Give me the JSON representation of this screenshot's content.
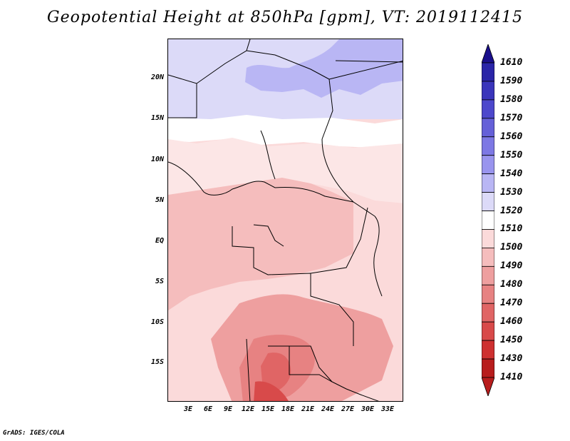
{
  "title": "Geopotential Height at 850hPa [gpm], VT: 2019112415",
  "credit": "GrADS: IGES/COLA",
  "map": {
    "lat_labels": [
      "20N",
      "15N",
      "10N",
      "5N",
      "EQ",
      "5S",
      "10S",
      "15S"
    ],
    "lon_labels": [
      "3E",
      "6E",
      "9E",
      "12E",
      "15E",
      "18E",
      "21E",
      "24E",
      "27E",
      "30E",
      "33E"
    ]
  },
  "colorbar": {
    "levels": [
      "1610",
      "1590",
      "1580",
      "1570",
      "1560",
      "1550",
      "1540",
      "1530",
      "1520",
      "1510",
      "1500",
      "1490",
      "1480",
      "1470",
      "1460",
      "1450",
      "1430",
      "1410"
    ],
    "colors": [
      "#1a0f8c",
      "#2a25a8",
      "#3a35bb",
      "#4d48cc",
      "#6560d8",
      "#7d78e4",
      "#9994ee",
      "#b9b6f4",
      "#dcdaf8",
      "#ffffff",
      "#fbdada",
      "#f5bdbd",
      "#ee9f9f",
      "#e78282",
      "#e06565",
      "#d84a4a",
      "#ce3030",
      "#b81d1d"
    ]
  }
}
